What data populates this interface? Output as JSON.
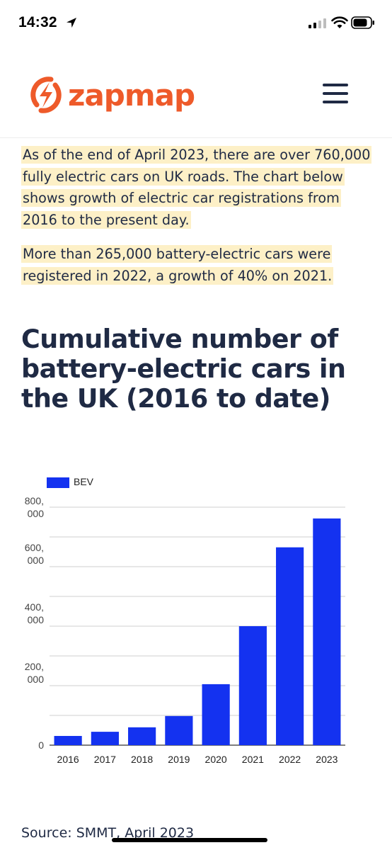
{
  "status_bar": {
    "time": "14:32"
  },
  "header": {
    "logo_text": "zapmap",
    "brand_color": "#ee5a2a"
  },
  "intro": {
    "para1": "As of the end of April 2023, there are over 760,000 fully electric cars on UK roads. The chart below shows growth of electric car registrations from 2016 to the present day.",
    "para2": "More than 265,000 battery-electric cars were registered in 2022, a growth of 40% on 2021."
  },
  "chart_title": "Cumulative number of battery-electric cars in the UK (2016 to date)",
  "chart_data": {
    "type": "bar",
    "categories": [
      "2016",
      "2017",
      "2018",
      "2019",
      "2020",
      "2021",
      "2022",
      "2023"
    ],
    "series": [
      {
        "name": "BEV",
        "values": [
          31000,
          45000,
          60000,
          98000,
          205000,
          400000,
          665000,
          762000
        ],
        "color": "#1432f0"
      }
    ],
    "ylim": [
      0,
      800000
    ],
    "yticks": [
      {
        "value": 0,
        "label": [
          "0"
        ]
      },
      {
        "value": 200000,
        "label": [
          "200,",
          "000"
        ]
      },
      {
        "value": 400000,
        "label": [
          "400,",
          "000"
        ]
      },
      {
        "value": 600000,
        "label": [
          "600,",
          "000"
        ]
      },
      {
        "value": 800000,
        "label": [
          "800,",
          "000"
        ]
      }
    ],
    "grid": true,
    "legend": "top-left"
  },
  "source": "Source: SMMT, April 2023"
}
